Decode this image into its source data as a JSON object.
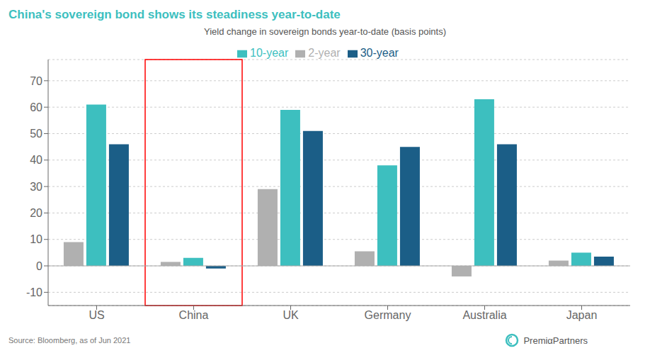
{
  "chart_data": {
    "type": "bar",
    "title": "China's sovereign bond shows its steadiness year-to-date",
    "subtitle": "Yield change in sovereign bonds year-to-date (basis points)",
    "categories": [
      "US",
      "China",
      "UK",
      "Germany",
      "Australia",
      "Japan"
    ],
    "series": [
      {
        "name": "2-year",
        "color": "#b0b0b0",
        "values": [
          9,
          1.5,
          29,
          5.5,
          -4,
          2
        ]
      },
      {
        "name": "10-year",
        "color": "#3dbfbf",
        "values": [
          61,
          3,
          59,
          38,
          63,
          5
        ]
      },
      {
        "name": "30-year",
        "color": "#1b5e87",
        "values": [
          46,
          -1,
          51,
          45,
          46,
          3.5
        ]
      }
    ],
    "ylim": [
      -15,
      78
    ],
    "yticks": [
      -10,
      0,
      10,
      20,
      30,
      40,
      50,
      60,
      70
    ],
    "grid": true,
    "legend": "top",
    "annotations": [
      "Source: Bloomberg, as of Jun 2021",
      "PremiαPartners"
    ],
    "highlight": {
      "category": "China",
      "color": "red"
    }
  }
}
